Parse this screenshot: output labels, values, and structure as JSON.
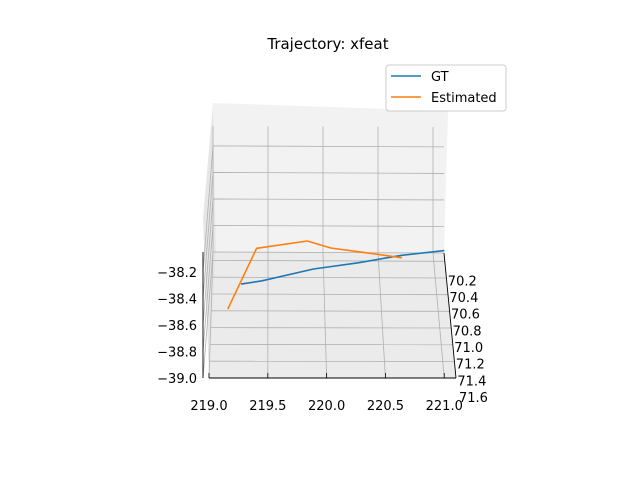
{
  "chart_data": {
    "type": "line",
    "title": "Trajectory: xfeat",
    "projection": "3d",
    "axes": {
      "x": {
        "ticks": [
          "219.0",
          "219.5",
          "220.0",
          "220.5",
          "221.0"
        ],
        "range": [
          219.0,
          221.1
        ]
      },
      "y": {
        "ticks": [
          "70.2",
          "70.4",
          "70.6",
          "70.8",
          "71.0",
          "71.2",
          "71.4",
          "71.6"
        ],
        "range": [
          70.1,
          71.6
        ]
      },
      "z": {
        "ticks": [
          "−38.2",
          "−38.4",
          "−38.6",
          "−38.8",
          "−39.0"
        ],
        "range": [
          -39.0,
          -38.05
        ]
      }
    },
    "grid": true,
    "legend_position": "top-right",
    "series": [
      {
        "name": "GT",
        "color": "#1f77b4",
        "points": [
          {
            "x": 219.27,
            "y": 71.35,
            "z": -38.45
          },
          {
            "x": 219.45,
            "y": 71.2,
            "z": -38.52
          },
          {
            "x": 219.9,
            "y": 70.9,
            "z": -38.62
          },
          {
            "x": 220.3,
            "y": 70.65,
            "z": -38.73
          },
          {
            "x": 220.7,
            "y": 70.4,
            "z": -38.83
          },
          {
            "x": 221.1,
            "y": 70.15,
            "z": -38.95
          }
        ]
      },
      {
        "name": "Estimated",
        "color": "#ff7f0e",
        "points": [
          {
            "x": 219.15,
            "y": 71.0,
            "z": -38.86
          },
          {
            "x": 219.4,
            "y": 70.75,
            "z": -38.56
          },
          {
            "x": 219.85,
            "y": 70.55,
            "z": -38.63
          },
          {
            "x": 220.05,
            "y": 70.95,
            "z": -38.43
          },
          {
            "x": 220.35,
            "y": 71.1,
            "z": -38.37
          },
          {
            "x": 220.65,
            "y": 71.4,
            "z": -38.22
          }
        ]
      }
    ]
  }
}
